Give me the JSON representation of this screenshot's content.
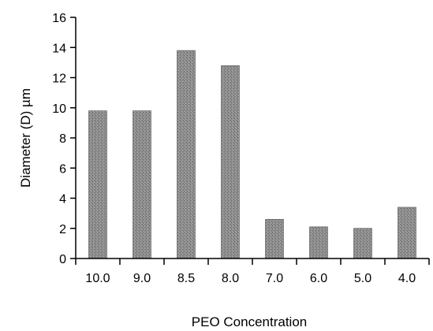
{
  "chart_data": {
    "type": "bar",
    "title": "",
    "xlabel": "PEO Concentration",
    "ylabel": "Diameter (D) µm",
    "categories": [
      "10.0",
      "9.0",
      "8.5",
      "8.0",
      "7.0",
      "6.0",
      "5.0",
      "4.0"
    ],
    "values": [
      9.8,
      9.8,
      13.8,
      12.8,
      2.6,
      2.1,
      2.0,
      3.4
    ],
    "ylim": [
      0,
      16
    ],
    "yticks": [
      "0",
      "2",
      "4",
      "6",
      "8",
      "10",
      "12",
      "14",
      "16"
    ],
    "grid": false,
    "legend": "none",
    "bar_color": "#8c8c8c"
  }
}
